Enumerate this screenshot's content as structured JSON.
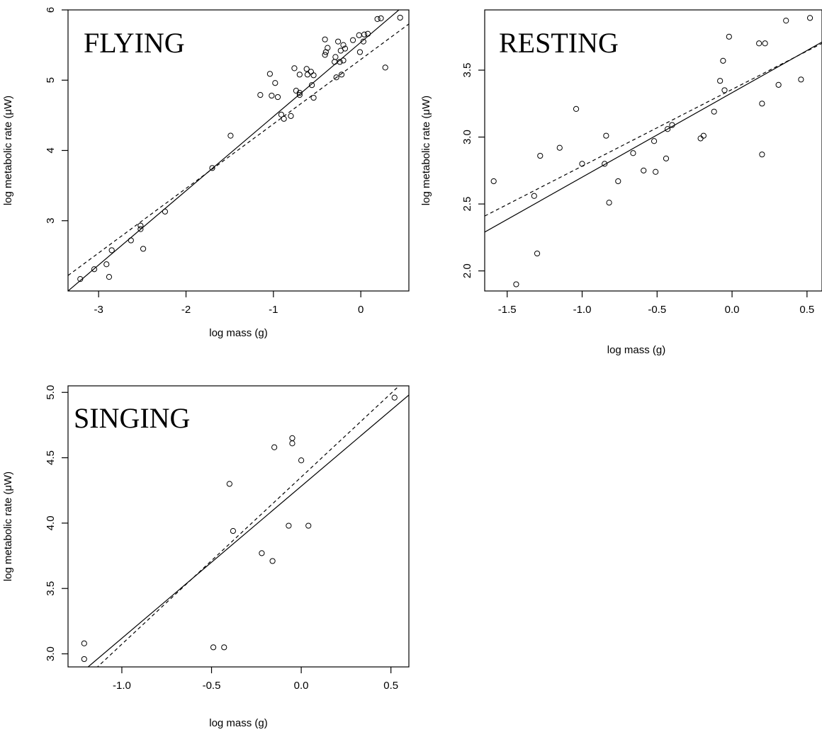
{
  "chart_data": [
    {
      "type": "scatter",
      "title": "FLYING",
      "xlabel": "log mass (g)",
      "ylabel": "log metabolic rate (μW)",
      "xlim": [
        -3.35,
        0.55
      ],
      "ylim": [
        2.0,
        6.0
      ],
      "xticks": [
        -3,
        -2,
        -1,
        0
      ],
      "xtick_labels": [
        "-3",
        "-2",
        "-1",
        "0"
      ],
      "yticks": [
        3,
        4,
        5,
        6
      ],
      "ytick_labels": [
        "3",
        "4",
        "5",
        "6"
      ],
      "grid": false,
      "points": [
        [
          -3.21,
          2.17
        ],
        [
          -3.05,
          2.31
        ],
        [
          -2.91,
          2.38
        ],
        [
          -2.88,
          2.2
        ],
        [
          -2.85,
          2.58
        ],
        [
          -2.63,
          2.72
        ],
        [
          -2.52,
          2.93
        ],
        [
          -2.52,
          2.88
        ],
        [
          -2.49,
          2.6
        ],
        [
          -2.24,
          3.13
        ],
        [
          -1.7,
          3.75
        ],
        [
          -1.49,
          4.21
        ],
        [
          -1.15,
          4.79
        ],
        [
          -1.04,
          5.09
        ],
        [
          -1.02,
          4.78
        ],
        [
          -0.98,
          4.96
        ],
        [
          -0.95,
          4.76
        ],
        [
          -0.91,
          4.51
        ],
        [
          -0.88,
          4.45
        ],
        [
          -0.8,
          4.49
        ],
        [
          -0.76,
          5.17
        ],
        [
          -0.74,
          4.85
        ],
        [
          -0.7,
          4.79
        ],
        [
          -0.7,
          4.82
        ],
        [
          -0.7,
          5.08
        ],
        [
          -0.62,
          5.16
        ],
        [
          -0.61,
          5.08
        ],
        [
          -0.57,
          5.12
        ],
        [
          -0.56,
          4.93
        ],
        [
          -0.54,
          4.75
        ],
        [
          -0.54,
          5.07
        ],
        [
          -0.41,
          5.58
        ],
        [
          -0.41,
          5.36
        ],
        [
          -0.4,
          5.4
        ],
        [
          -0.38,
          5.46
        ],
        [
          -0.3,
          5.26
        ],
        [
          -0.29,
          5.33
        ],
        [
          -0.28,
          5.04
        ],
        [
          -0.26,
          5.55
        ],
        [
          -0.24,
          5.26
        ],
        [
          -0.23,
          5.42
        ],
        [
          -0.22,
          5.08
        ],
        [
          -0.2,
          5.5
        ],
        [
          -0.2,
          5.28
        ],
        [
          -0.18,
          5.45
        ],
        [
          -0.09,
          5.57
        ],
        [
          -0.02,
          5.64
        ],
        [
          -0.01,
          5.4
        ],
        [
          0.03,
          5.55
        ],
        [
          0.04,
          5.65
        ],
        [
          0.08,
          5.66
        ],
        [
          0.19,
          5.87
        ],
        [
          0.23,
          5.88
        ],
        [
          0.28,
          5.18
        ],
        [
          0.45,
          5.89
        ]
      ],
      "lines": [
        {
          "style": "solid",
          "x": [
            -3.35,
            0.55
          ],
          "y": [
            2.0,
            6.12
          ]
        },
        {
          "style": "dashed",
          "x": [
            -3.35,
            0.55
          ],
          "y": [
            2.22,
            5.8
          ]
        }
      ]
    },
    {
      "type": "scatter",
      "title": "RESTING",
      "xlabel": "log mass (g)",
      "ylabel": "log metabolic rate (μW)",
      "xlim": [
        -1.65,
        0.6
      ],
      "ylim": [
        1.85,
        3.95
      ],
      "xticks": [
        -1.5,
        -1.0,
        -0.5,
        0.0,
        0.5
      ],
      "xtick_labels": [
        "-1.5",
        "-1.0",
        "-0.5",
        "0.0",
        "0.5"
      ],
      "yticks": [
        2.0,
        2.5,
        3.0,
        3.5
      ],
      "ytick_labels": [
        "2.0",
        "2.5",
        "3.0",
        "3.5"
      ],
      "grid": false,
      "points": [
        [
          -1.59,
          2.67
        ],
        [
          -1.44,
          1.9
        ],
        [
          -1.32,
          2.56
        ],
        [
          -1.3,
          2.13
        ],
        [
          -1.28,
          2.86
        ],
        [
          -1.15,
          2.92
        ],
        [
          -1.04,
          3.21
        ],
        [
          -1.0,
          2.8
        ],
        [
          -0.85,
          2.8
        ],
        [
          -0.84,
          3.01
        ],
        [
          -0.82,
          2.51
        ],
        [
          -0.76,
          2.67
        ],
        [
          -0.66,
          2.88
        ],
        [
          -0.59,
          2.75
        ],
        [
          -0.52,
          2.97
        ],
        [
          -0.51,
          2.74
        ],
        [
          -0.44,
          2.84
        ],
        [
          -0.43,
          3.06
        ],
        [
          -0.4,
          3.09
        ],
        [
          -0.21,
          2.99
        ],
        [
          -0.19,
          3.01
        ],
        [
          -0.12,
          3.19
        ],
        [
          -0.08,
          3.42
        ],
        [
          -0.06,
          3.57
        ],
        [
          -0.05,
          3.35
        ],
        [
          -0.02,
          3.75
        ],
        [
          0.18,
          3.7
        ],
        [
          0.2,
          3.25
        ],
        [
          0.2,
          2.87
        ],
        [
          0.22,
          3.7
        ],
        [
          0.31,
          3.39
        ],
        [
          0.36,
          3.87
        ],
        [
          0.46,
          3.43
        ],
        [
          0.52,
          3.89
        ]
      ],
      "lines": [
        {
          "style": "solid",
          "x": [
            -1.65,
            0.6
          ],
          "y": [
            2.29,
            3.71
          ]
        },
        {
          "style": "dashed",
          "x": [
            -1.65,
            0.6
          ],
          "y": [
            2.41,
            3.7
          ]
        }
      ]
    },
    {
      "type": "scatter",
      "title": "SINGING",
      "xlabel": "log mass (g)",
      "ylabel": "log metabolic rate (μW)",
      "xlim": [
        -1.3,
        0.6
      ],
      "ylim": [
        2.9,
        5.05
      ],
      "xticks": [
        -1.0,
        -0.5,
        0.0,
        0.5
      ],
      "xtick_labels": [
        "-1.0",
        "-0.5",
        "0.0",
        "0.5"
      ],
      "yticks": [
        3.0,
        3.5,
        4.0,
        4.5,
        5.0
      ],
      "ytick_labels": [
        "3.0",
        "3.5",
        "4.0",
        "4.5",
        "5.0"
      ],
      "grid": false,
      "points": [
        [
          -1.21,
          3.08
        ],
        [
          -1.21,
          2.96
        ],
        [
          -0.49,
          3.05
        ],
        [
          -0.43,
          3.05
        ],
        [
          -0.4,
          4.3
        ],
        [
          -0.38,
          3.94
        ],
        [
          -0.22,
          3.77
        ],
        [
          -0.16,
          3.71
        ],
        [
          -0.15,
          4.58
        ],
        [
          -0.07,
          3.98
        ],
        [
          -0.05,
          4.65
        ],
        [
          -0.05,
          4.61
        ],
        [
          0.0,
          4.48
        ],
        [
          0.04,
          3.98
        ],
        [
          0.52,
          4.96
        ]
      ],
      "lines": [
        {
          "style": "solid",
          "x": [
            -1.3,
            0.6
          ],
          "y": [
            2.77,
            4.98
          ]
        },
        {
          "style": "dashed",
          "x": [
            -1.3,
            0.6
          ],
          "y": [
            2.69,
            5.12
          ]
        }
      ]
    }
  ]
}
